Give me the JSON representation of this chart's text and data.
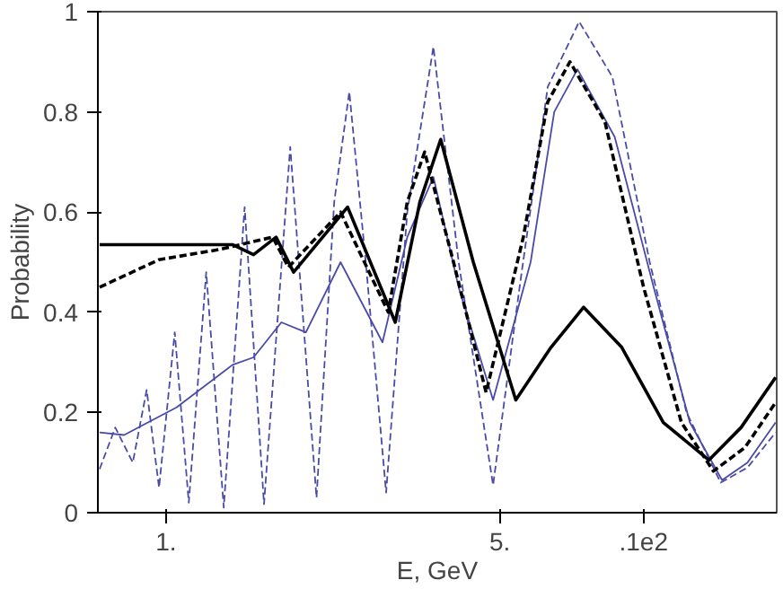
{
  "chart_data": {
    "type": "line",
    "xlabel": "E, GeV",
    "ylabel": "Probability",
    "log": "x",
    "xlim": [
      0.72,
      19
    ],
    "ylim": [
      0,
      1
    ],
    "xticks": [
      {
        "value": 1,
        "label": "1."
      },
      {
        "value": 5,
        "label": "5."
      },
      {
        "value": 10,
        "label": ".1e2"
      }
    ],
    "yticks": [
      0,
      0.2,
      0.4,
      0.6,
      0.8,
      1
    ],
    "grid": false,
    "series": [
      {
        "color": "#4a4aa8",
        "line_style": "dashed",
        "x": [
          0.726,
          0.783,
          0.852,
          0.911,
          0.967,
          1.043,
          1.116,
          1.214,
          1.321,
          1.461,
          1.604,
          1.82,
          2.066,
          2.25,
          2.42,
          2.62,
          2.89,
          3.2,
          3.63,
          4.1,
          4.84,
          5.5,
          6.3,
          7.33,
          8.6,
          10.3,
          12.3,
          14.5,
          16.5,
          18.9
        ],
        "values": [
          0.087,
          0.17,
          0.1,
          0.245,
          0.05,
          0.36,
          0.02,
          0.48,
          0.01,
          0.61,
          0.017,
          0.73,
          0.03,
          0.62,
          0.84,
          0.5,
          0.04,
          0.6,
          0.93,
          0.5,
          0.055,
          0.45,
          0.85,
          0.98,
          0.87,
          0.5,
          0.2,
          0.06,
          0.09,
          0.16
        ]
      },
      {
        "color": "#4a4aa8",
        "line_style": "solid",
        "x": [
          0.726,
          0.817,
          1.052,
          1.378,
          1.525,
          1.744,
          1.963,
          2.32,
          2.84,
          3.2,
          3.63,
          4.1,
          4.84,
          5.8,
          6.5,
          7.27,
          8.7,
          10.5,
          12.5,
          14.6,
          16.5,
          18.9
        ],
        "values": [
          0.16,
          0.155,
          0.21,
          0.295,
          0.31,
          0.38,
          0.36,
          0.5,
          0.34,
          0.55,
          0.67,
          0.45,
          0.225,
          0.5,
          0.8,
          0.885,
          0.75,
          0.45,
          0.18,
          0.065,
          0.1,
          0.18
        ]
      },
      {
        "color": "#000000",
        "line_style": "dashed",
        "x": [
          0.726,
          0.967,
          1.288,
          1.673,
          1.804,
          2.32,
          2.92,
          3.2,
          3.48,
          4.0,
          4.68,
          5.6,
          6.3,
          7.01,
          8.3,
          10.0,
          12.0,
          14.0,
          16.3,
          18.9
        ],
        "values": [
          0.45,
          0.505,
          0.525,
          0.55,
          0.49,
          0.6,
          0.4,
          0.62,
          0.72,
          0.5,
          0.24,
          0.55,
          0.82,
          0.9,
          0.78,
          0.45,
          0.18,
          0.083,
          0.13,
          0.22
        ]
      },
      {
        "color": "#000000",
        "line_style": "solid",
        "x": [
          0.726,
          1.321,
          1.378,
          1.525,
          1.7,
          1.85,
          2.4,
          3.02,
          3.4,
          3.76,
          4.4,
          5.4,
          6.4,
          7.49,
          9.0,
          11.0,
          13.7,
          16.0,
          18.9
        ],
        "values": [
          0.535,
          0.535,
          0.535,
          0.515,
          0.55,
          0.48,
          0.61,
          0.38,
          0.62,
          0.745,
          0.5,
          0.225,
          0.33,
          0.41,
          0.33,
          0.18,
          0.105,
          0.17,
          0.27
        ]
      }
    ]
  }
}
